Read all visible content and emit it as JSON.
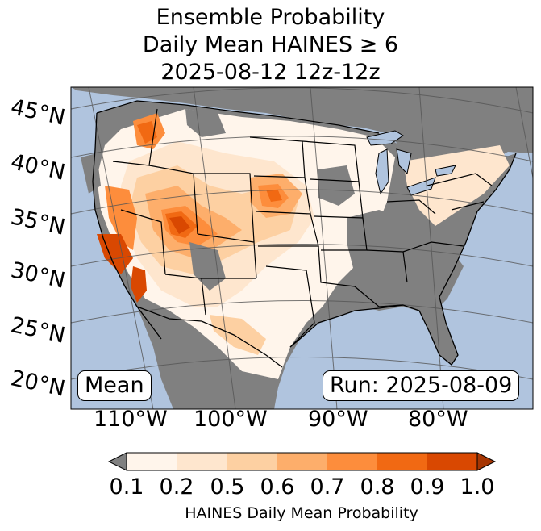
{
  "title": {
    "line1": "Ensemble Probability",
    "line2": "Daily Mean HAINES ≥ 6",
    "line3": "2025-08-12 12z-12z"
  },
  "map": {
    "lat_labels": [
      "45°N",
      "40°N",
      "35°N",
      "30°N",
      "25°N",
      "20°N"
    ],
    "lon_labels": [
      "110°W",
      "100°W",
      "90°W",
      "80°W"
    ],
    "stat_label": "Mean",
    "run_label": "Run: 2025-08-09",
    "colors": {
      "ocean": "#b0c4de",
      "land_nodata": "#808080",
      "under_0_1": "#808080"
    }
  },
  "colorbar": {
    "ticks": [
      "0.1",
      "0.2",
      "0.5",
      "0.6",
      "0.7",
      "0.8",
      "0.9",
      "1.0"
    ],
    "colors": [
      "#fff5eb",
      "#fee6ce",
      "#fdd0a2",
      "#fdae6b",
      "#fd8d3c",
      "#f16913",
      "#d94801",
      "#a63603"
    ],
    "under_color": "#808080",
    "label": "HAINES Daily Mean Probability"
  }
}
